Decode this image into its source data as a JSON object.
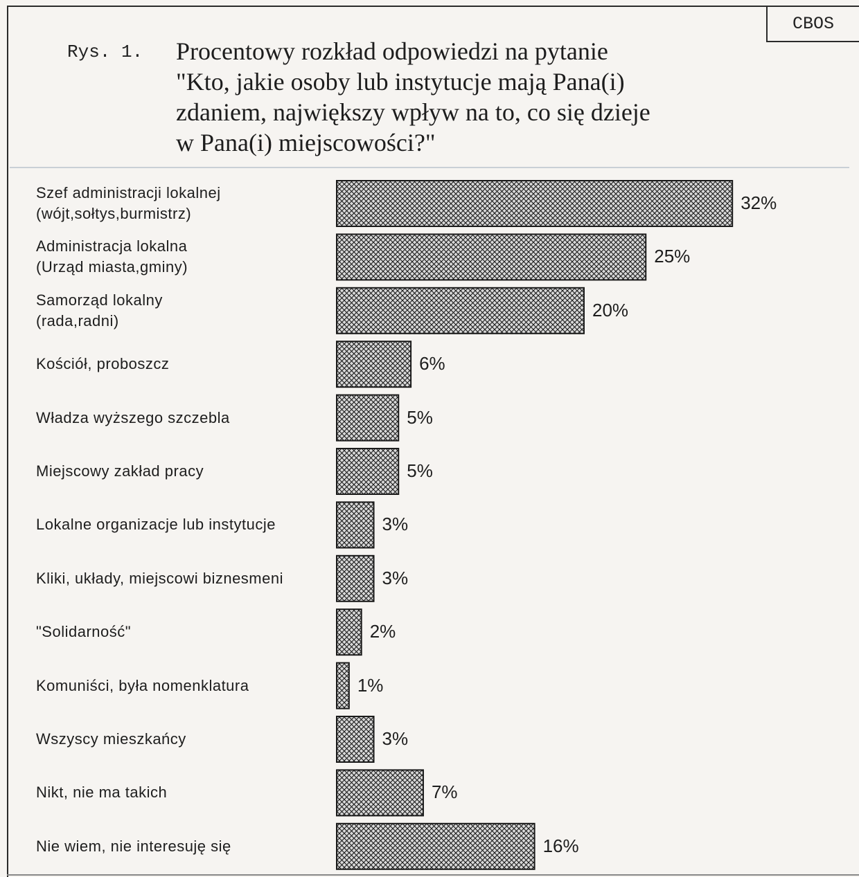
{
  "source_tag": "CBOS",
  "figure_label": "Rys. 1.",
  "title_lines": [
    "Procentowy rozkład odpowiedzi na pytanie",
    "\"Kto, jakie osoby lub instytucje mają Pana(i)",
    "zdaniem, największy wpływ na to, co się dzieje",
    "w Pana(i) miejscowości?\""
  ],
  "colors": {
    "bar_fill": "#d9d9d9",
    "bar_hatch": "#1a1a1a",
    "bar_border": "#1a1a1a",
    "text": "#1d1d1d"
  },
  "chart_data": {
    "type": "bar",
    "orientation": "horizontal",
    "unit": "%",
    "title": "Procentowy rozkład odpowiedzi na pytanie \"Kto, jakie osoby lub instytucje mają Pana(i) zdaniem, największy wpływ na to, co się dzieje w Pana(i) miejscowości?\"",
    "categories": [
      [
        "Szef administracji lokalnej",
        "(wójt,sołtys,burmistrz)"
      ],
      [
        "Administracja lokalna",
        "(Urząd miasta,gminy)"
      ],
      [
        "Samorząd lokalny",
        "(rada,radni)"
      ],
      [
        "Kościół, proboszcz"
      ],
      [
        "Władza wyższego szczebla"
      ],
      [
        "Miejscowy zakład pracy"
      ],
      [
        "Lokalne organizacje lub instytucje"
      ],
      [
        "Kliki, układy, miejscowi biznesmeni"
      ],
      [
        "\"Solidarność\""
      ],
      [
        "Komuniści, była nomenklatura"
      ],
      [
        "Wszyscy mieszkańcy"
      ],
      [
        "Nikt, nie ma takich"
      ],
      [
        "Nie wiem, nie interesuję się"
      ]
    ],
    "values": [
      32,
      25,
      20,
      6,
      5,
      5,
      3,
      3,
      2,
      1,
      3,
      7,
      16
    ],
    "value_labels": [
      "32%",
      "25%",
      "20%",
      "6%",
      "5%",
      "5%",
      "3%",
      "3%",
      "2%",
      "1%",
      "3%",
      "7%",
      "16%"
    ],
    "bar_pattern": "crosshatch",
    "grid": false,
    "legend": "none"
  }
}
